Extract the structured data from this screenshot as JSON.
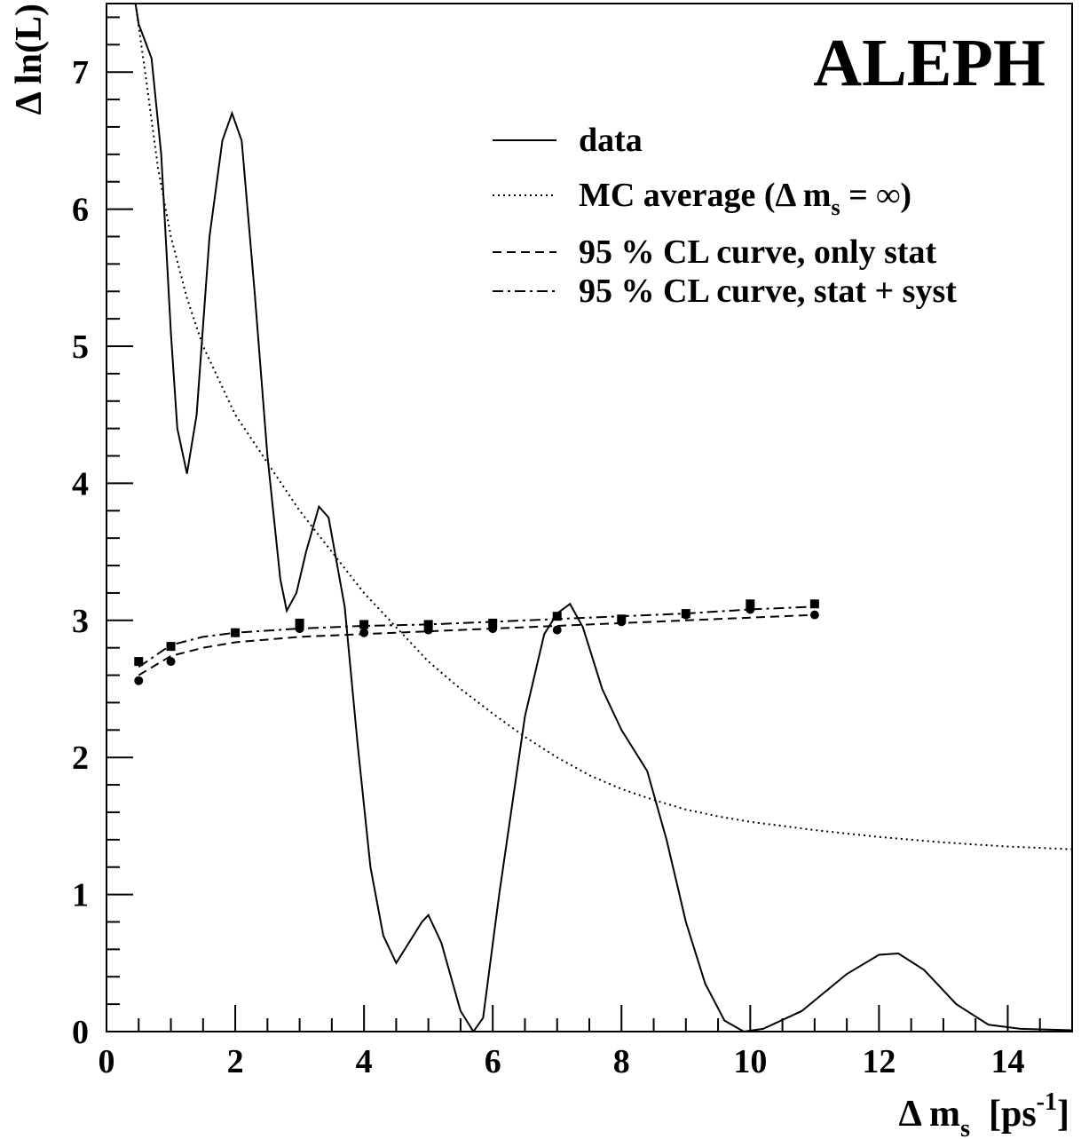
{
  "chart_data": {
    "type": "line",
    "title": "ALEPH",
    "x_label": {
      "main": "Δ m",
      "sub": "s",
      "unit": "  [ps",
      "sup": "-1",
      "close": "]"
    },
    "y_label": "Δ ln(L)",
    "xlim": [
      0,
      15
    ],
    "ylim": [
      0,
      7.5
    ],
    "xticks": [
      0,
      2,
      4,
      6,
      8,
      10,
      12,
      14
    ],
    "yticks": [
      0,
      1,
      2,
      3,
      4,
      5,
      6,
      7
    ],
    "xminorticks": [
      0.5,
      1,
      1.5,
      2.5,
      3,
      3.5,
      4.5,
      5,
      5.5,
      6.5,
      7,
      7.5,
      8.5,
      9,
      9.5,
      10.5,
      11,
      11.5,
      12.5,
      13,
      13.5,
      14.5
    ],
    "yminorticks": [
      0.2,
      0.4,
      0.6,
      0.8,
      1.2,
      1.4,
      1.6,
      1.8,
      2.2,
      2.4,
      2.6,
      2.8,
      3.2,
      3.4,
      3.6,
      3.8,
      4.2,
      4.4,
      4.6,
      4.8,
      5.2,
      5.4,
      5.6,
      5.8,
      6.2,
      6.4,
      6.6,
      6.8,
      7.2,
      7.4
    ],
    "series": [
      {
        "name": "data",
        "color": "#000000",
        "dash": "solid",
        "x": [
          0.45,
          0.5,
          0.7,
          0.85,
          1.0,
          1.1,
          1.25,
          1.4,
          1.6,
          1.8,
          1.95,
          2.1,
          2.3,
          2.5,
          2.7,
          2.8,
          2.95,
          3.1,
          3.3,
          3.45,
          3.7,
          3.9,
          4.1,
          4.3,
          4.5,
          4.7,
          4.9,
          5.0,
          5.2,
          5.5,
          5.7,
          5.85,
          6.1,
          6.5,
          6.8,
          7.0,
          7.2,
          7.4,
          7.7,
          8.0,
          8.4,
          8.7,
          9.0,
          9.3,
          9.6,
          9.9,
          10.2,
          10.8,
          11.5,
          12.0,
          12.3,
          12.7,
          13.2,
          13.7,
          14.2,
          15.0
        ],
        "values": [
          7.5,
          7.35,
          7.1,
          6.4,
          5.1,
          4.4,
          4.07,
          4.5,
          5.8,
          6.5,
          6.7,
          6.5,
          5.4,
          4.2,
          3.3,
          3.07,
          3.2,
          3.5,
          3.83,
          3.75,
          3.1,
          2.1,
          1.2,
          0.7,
          0.5,
          0.65,
          0.8,
          0.85,
          0.65,
          0.15,
          0,
          0.1,
          1.0,
          2.3,
          2.9,
          3.05,
          3.12,
          2.95,
          2.5,
          2.2,
          1.9,
          1.4,
          0.8,
          0.35,
          0.08,
          0,
          0.02,
          0.15,
          0.42,
          0.56,
          0.57,
          0.45,
          0.2,
          0.05,
          0.02,
          0.01
        ]
      },
      {
        "name": "MC average (Δ m",
        "name_sub": "s",
        "name_tail": " = ∞)",
        "color": "#000000",
        "dash": "dotted",
        "x": [
          0.45,
          0.6,
          0.8,
          1.0,
          1.25,
          1.5,
          2.0,
          2.5,
          3.0,
          3.5,
          4.0,
          4.5,
          5.0,
          5.5,
          6.0,
          6.5,
          7.0,
          7.5,
          8.0,
          8.5,
          9.0,
          9.5,
          10,
          11,
          12,
          13,
          14,
          15
        ],
        "values": [
          7.5,
          7.0,
          6.3,
          5.8,
          5.35,
          5.0,
          4.5,
          4.15,
          3.8,
          3.5,
          3.2,
          2.95,
          2.7,
          2.5,
          2.32,
          2.15,
          2.0,
          1.87,
          1.77,
          1.69,
          1.62,
          1.57,
          1.53,
          1.47,
          1.42,
          1.38,
          1.35,
          1.33
        ]
      },
      {
        "name": "95 % CL curve, only stat",
        "color": "#000000",
        "dash": "dashed",
        "x": [
          0.5,
          1,
          1.5,
          2,
          3,
          4,
          5,
          6,
          7,
          8,
          9,
          10,
          11
        ],
        "values": [
          2.6,
          2.74,
          2.8,
          2.84,
          2.88,
          2.9,
          2.92,
          2.94,
          2.96,
          2.98,
          3.0,
          3.02,
          3.04
        ],
        "points": {
          "marker": "circle",
          "x": [
            0.5,
            1,
            2,
            3,
            4,
            5,
            6,
            7,
            8,
            9,
            10,
            11
          ],
          "values": [
            2.56,
            2.7,
            2.91,
            2.94,
            2.91,
            2.93,
            2.94,
            2.93,
            2.99,
            3.04,
            3.08,
            3.04
          ]
        }
      },
      {
        "name": "95 % CL curve, stat + syst",
        "color": "#000000",
        "dash": "dashdot",
        "x": [
          0.5,
          1,
          1.5,
          2,
          3,
          4,
          5,
          6,
          7,
          8,
          9,
          10,
          11
        ],
        "values": [
          2.66,
          2.82,
          2.88,
          2.91,
          2.94,
          2.96,
          2.97,
          2.99,
          3.01,
          3.03,
          3.05,
          3.08,
          3.1
        ],
        "points": {
          "marker": "square",
          "x": [
            0.5,
            1,
            2,
            3,
            4,
            5,
            6,
            7,
            8,
            9,
            10,
            11
          ],
          "values": [
            2.7,
            2.81,
            2.91,
            2.98,
            2.97,
            2.97,
            2.98,
            3.03,
            3.01,
            3.05,
            3.12,
            3.12
          ]
        }
      }
    ]
  }
}
